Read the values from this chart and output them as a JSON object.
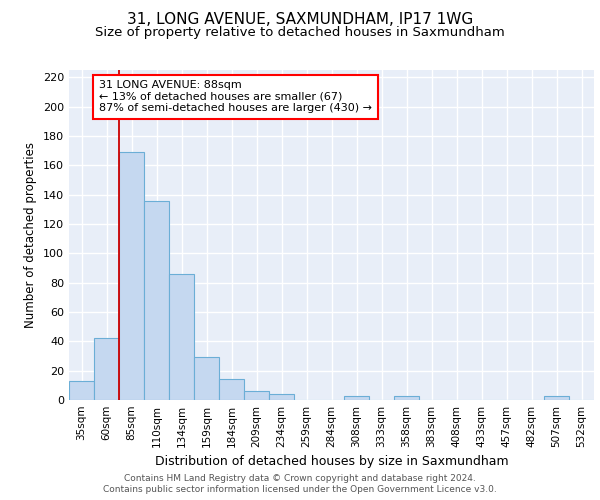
{
  "title1": "31, LONG AVENUE, SAXMUNDHAM, IP17 1WG",
  "title2": "Size of property relative to detached houses in Saxmundham",
  "xlabel": "Distribution of detached houses by size in Saxmundham",
  "ylabel": "Number of detached properties",
  "categories": [
    "35sqm",
    "60sqm",
    "85sqm",
    "110sqm",
    "134sqm",
    "159sqm",
    "184sqm",
    "209sqm",
    "234sqm",
    "259sqm",
    "284sqm",
    "308sqm",
    "333sqm",
    "358sqm",
    "383sqm",
    "408sqm",
    "433sqm",
    "457sqm",
    "482sqm",
    "507sqm",
    "532sqm"
  ],
  "values": [
    13,
    42,
    169,
    136,
    86,
    29,
    14,
    6,
    4,
    0,
    0,
    3,
    0,
    3,
    0,
    0,
    0,
    0,
    0,
    3,
    0
  ],
  "bar_color": "#c5d8f0",
  "bar_edge_color": "#6baed6",
  "vline_x_index": 2,
  "vline_color": "#cc0000",
  "annotation_text": "31 LONG AVENUE: 88sqm\n← 13% of detached houses are smaller (67)\n87% of semi-detached houses are larger (430) →",
  "annotation_box_color": "white",
  "annotation_box_edge": "red",
  "ylim": [
    0,
    225
  ],
  "yticks": [
    0,
    20,
    40,
    60,
    80,
    100,
    120,
    140,
    160,
    180,
    200,
    220
  ],
  "background_color": "#e8eef8",
  "grid_color": "white",
  "footer_line1": "Contains HM Land Registry data © Crown copyright and database right 2024.",
  "footer_line2": "Contains public sector information licensed under the Open Government Licence v3.0.",
  "title1_fontsize": 11,
  "title2_fontsize": 9.5,
  "xlabel_fontsize": 9,
  "ylabel_fontsize": 8.5,
  "tick_fontsize": 8,
  "xtick_fontsize": 7.5,
  "annotation_fontsize": 8,
  "footer_fontsize": 6.5
}
